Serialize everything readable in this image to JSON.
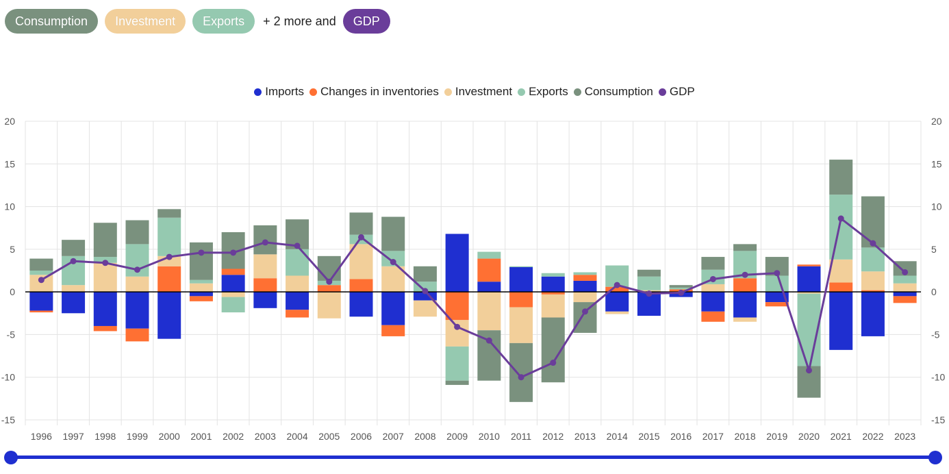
{
  "filter_pills": [
    {
      "label": "Consumption",
      "color": "#7a917e"
    },
    {
      "label": "Investment",
      "color": "#f2cf9a"
    },
    {
      "label": "Exports",
      "color": "#95c9b0"
    }
  ],
  "more_text": "+ 2 more and",
  "gdp_pill": {
    "label": "GDP",
    "color": "#6a3d9a"
  },
  "chart_data": {
    "type": "bar",
    "stacked": true,
    "categories": [
      "1996",
      "1997",
      "1998",
      "1999",
      "2000",
      "2001",
      "2002",
      "2003",
      "2004",
      "2005",
      "2006",
      "2007",
      "2008",
      "2009",
      "2010",
      "2011",
      "2012",
      "2013",
      "2014",
      "2015",
      "2016",
      "2017",
      "2018",
      "2019",
      "2020",
      "2021",
      "2022",
      "2023"
    ],
    "series": [
      {
        "name": "Imports",
        "color": "#1f2fd0",
        "values": [
          -2.2,
          -2.5,
          -4.0,
          -4.3,
          -5.5,
          -0.5,
          2.0,
          -1.9,
          -2.1,
          0.0,
          -2.9,
          -3.9,
          -1.0,
          6.8,
          1.2,
          2.9,
          1.8,
          1.3,
          -2.3,
          -2.8,
          -0.6,
          -2.3,
          -3.0,
          -1.2,
          3.0,
          -6.8,
          -5.2,
          -0.5
        ]
      },
      {
        "name": "Changes in inventories",
        "color": "#ff7033",
        "values": [
          -0.2,
          0.0,
          -0.6,
          -1.5,
          3.0,
          -0.6,
          0.7,
          1.6,
          -0.9,
          0.8,
          1.5,
          -1.3,
          0.0,
          -3.3,
          2.7,
          -1.8,
          -0.3,
          0.7,
          0.6,
          0.0,
          0.3,
          -1.2,
          1.6,
          -0.5,
          0.2,
          1.1,
          0.2,
          -0.8
        ]
      },
      {
        "name": "Investment",
        "color": "#f2cf9a",
        "values": [
          2.0,
          0.8,
          3.4,
          1.8,
          1.2,
          1.0,
          -0.6,
          2.8,
          1.9,
          -3.1,
          4.1,
          3.0,
          -1.9,
          -3.1,
          -4.5,
          -4.2,
          -2.7,
          -1.2,
          -0.3,
          0.2,
          0.0,
          0.9,
          -0.5,
          0.0,
          -0.2,
          2.7,
          2.2,
          1.0
        ]
      },
      {
        "name": "Exports",
        "color": "#95c9b0",
        "values": [
          0.5,
          3.4,
          0.7,
          3.8,
          4.5,
          0.4,
          -1.8,
          0.0,
          3.1,
          0.5,
          1.1,
          1.8,
          1.2,
          -4.0,
          0.8,
          0.1,
          0.4,
          0.3,
          2.5,
          1.6,
          0.2,
          1.7,
          3.2,
          1.9,
          -8.5,
          7.6,
          2.8,
          0.9
        ]
      },
      {
        "name": "Consumption",
        "color": "#7a917e",
        "values": [
          1.4,
          1.9,
          4.0,
          2.8,
          1.0,
          4.4,
          4.3,
          3.4,
          3.5,
          2.9,
          2.6,
          4.0,
          1.8,
          -0.5,
          -5.9,
          -6.9,
          -7.6,
          -3.6,
          0.0,
          0.8,
          0.3,
          1.5,
          0.8,
          2.2,
          -3.7,
          4.1,
          6.0,
          1.7
        ]
      }
    ],
    "line_series": {
      "name": "GDP",
      "color": "#6a3d9a",
      "values": [
        1.4,
        3.6,
        3.4,
        2.6,
        4.1,
        4.6,
        4.6,
        5.8,
        5.4,
        1.2,
        6.4,
        3.5,
        0.1,
        -4.1,
        -5.7,
        -10.0,
        -8.3,
        -2.3,
        0.8,
        -0.2,
        -0.1,
        1.5,
        2.0,
        2.2,
        -9.2,
        8.6,
        5.7,
        2.3
      ]
    },
    "legend": [
      "Imports",
      "Changes in inventories",
      "Investment",
      "Exports",
      "Consumption",
      "GDP"
    ],
    "legend_position": "top-center",
    "ylim": [
      -15,
      20
    ],
    "yticks": [
      20,
      15,
      10,
      5,
      0,
      -5,
      -10,
      -15
    ],
    "ylabel_left": "",
    "ylabel_right": "",
    "xlabel": "",
    "grid": true
  },
  "range_slider": {
    "start": "1996",
    "end": "2023"
  }
}
